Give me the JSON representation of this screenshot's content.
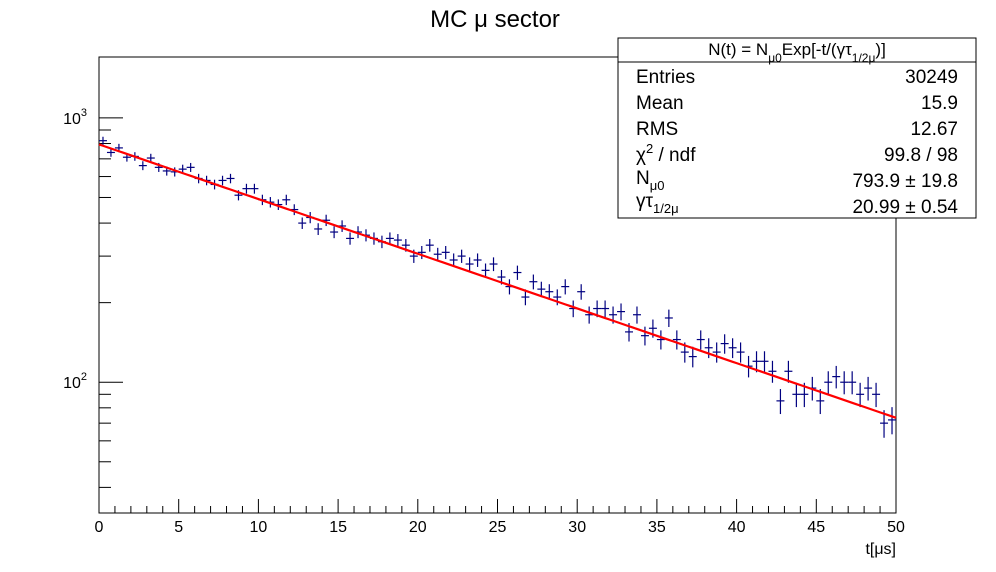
{
  "chart_data": {
    "type": "scatter",
    "title": "MC μ sector",
    "xlabel": "t[μs]",
    "ylabel": "",
    "xlim": [
      0,
      50
    ],
    "ylim": [
      32,
      1700
    ],
    "yscale": "log",
    "grid": false,
    "x_ticks": [
      0,
      5,
      10,
      15,
      20,
      25,
      30,
      35,
      40,
      45,
      50
    ],
    "y_ticks": [
      {
        "value": 100,
        "base": "10",
        "exp": "2"
      },
      {
        "value": 1000,
        "base": "10",
        "exp": "3"
      }
    ],
    "bin_width": 0.5,
    "series": [
      {
        "kind": "histogram-points",
        "color": "#000080",
        "x": [
          0.25,
          0.75,
          1.25,
          1.75,
          2.25,
          2.75,
          3.25,
          3.75,
          4.25,
          4.75,
          5.25,
          5.75,
          6.25,
          6.75,
          7.25,
          7.75,
          8.25,
          8.75,
          9.25,
          9.75,
          10.25,
          10.75,
          11.25,
          11.75,
          12.25,
          12.75,
          13.25,
          13.75,
          14.25,
          14.75,
          15.25,
          15.75,
          16.25,
          16.75,
          17.25,
          17.75,
          18.25,
          18.75,
          19.25,
          19.75,
          20.25,
          20.75,
          21.25,
          21.75,
          22.25,
          22.75,
          23.25,
          23.75,
          24.25,
          24.75,
          25.25,
          25.75,
          26.25,
          26.75,
          27.25,
          27.75,
          28.25,
          28.75,
          29.25,
          29.75,
          30.25,
          30.75,
          31.25,
          31.75,
          32.25,
          32.75,
          33.25,
          33.75,
          34.25,
          34.75,
          35.25,
          35.75,
          36.25,
          36.75,
          37.25,
          37.75,
          38.25,
          38.75,
          39.25,
          39.75,
          40.25,
          40.75,
          41.25,
          41.75,
          42.25,
          42.75,
          43.25,
          43.75,
          44.25,
          44.75,
          45.25,
          45.75,
          46.25,
          46.75,
          47.25,
          47.75,
          48.25,
          48.75,
          49.25,
          49.75
        ],
        "values": [
          820,
          740,
          770,
          710,
          715,
          660,
          705,
          650,
          630,
          625,
          640,
          650,
          590,
          580,
          560,
          580,
          590,
          510,
          540,
          540,
          490,
          480,
          470,
          490,
          450,
          400,
          420,
          380,
          410,
          370,
          390,
          350,
          370,
          360,
          350,
          340,
          350,
          345,
          330,
          300,
          310,
          330,
          305,
          310,
          290,
          300,
          280,
          290,
          265,
          280,
          250,
          230,
          260,
          210,
          240,
          225,
          220,
          210,
          230,
          190,
          220,
          180,
          190,
          190,
          180,
          185,
          155,
          180,
          150,
          160,
          145,
          175,
          145,
          130,
          125,
          145,
          135,
          130,
          140,
          135,
          130,
          115,
          120,
          120,
          110,
          85,
          110,
          90,
          90,
          95,
          85,
          100,
          105,
          100,
          100,
          90,
          95,
          90,
          70,
          72
        ]
      },
      {
        "kind": "fit",
        "name": "N(t) = Nμ0 Exp[-t/(γτ1/2μ)]",
        "color": "#ff0000",
        "N0": 793.9,
        "tau": 20.99
      }
    ],
    "stats_box": {
      "title_parts": {
        "a": "N(t) = N",
        "a_sub": "μ0",
        "b": "Exp[-t/(γτ",
        "b_sub": "1/2μ",
        "c": ")]"
      },
      "legend_position": "top-right",
      "rows": [
        {
          "label": "Entries",
          "value": "30249"
        },
        {
          "label": "Mean",
          "value": "15.9"
        },
        {
          "label": "RMS",
          "value": "12.67"
        },
        {
          "label": "χ",
          "label_sup": "2",
          "label_rest": " / ndf",
          "value": "99.8 / 98"
        },
        {
          "label": "N",
          "label_sub": "μ0",
          "value": "793.9 ± 19.8"
        },
        {
          "label": "γτ",
          "label_sub": "1/2μ",
          "value": "20.99 ± 0.54"
        }
      ]
    }
  }
}
